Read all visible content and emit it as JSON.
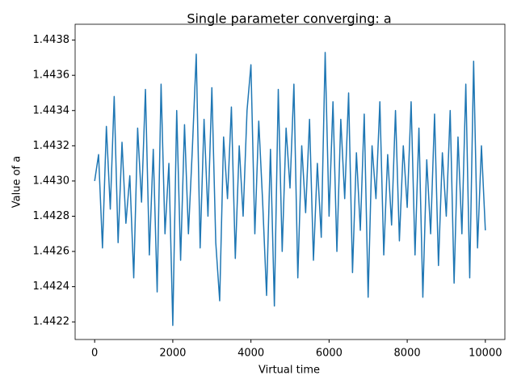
{
  "chart_data": {
    "type": "line",
    "title": "Single parameter converging: a",
    "xlabel": "Virtual time",
    "ylabel": "Value of a",
    "x": [
      0,
      100,
      200,
      300,
      400,
      500,
      600,
      700,
      800,
      900,
      1000,
      1100,
      1200,
      1300,
      1400,
      1500,
      1600,
      1700,
      1800,
      1900,
      2000,
      2100,
      2200,
      2300,
      2400,
      2500,
      2600,
      2700,
      2800,
      2900,
      3000,
      3100,
      3200,
      3300,
      3400,
      3500,
      3600,
      3700,
      3800,
      3900,
      4000,
      4100,
      4200,
      4300,
      4400,
      4500,
      4600,
      4700,
      4800,
      4900,
      5000,
      5100,
      5200,
      5300,
      5400,
      5500,
      5600,
      5700,
      5800,
      5900,
      6000,
      6100,
      6200,
      6300,
      6400,
      6500,
      6600,
      6700,
      6800,
      6900,
      7000,
      7100,
      7200,
      7300,
      7400,
      7500,
      7600,
      7700,
      7800,
      7900,
      8000,
      8100,
      8200,
      8300,
      8400,
      8500,
      8600,
      8700,
      8800,
      8900,
      9000,
      9100,
      9200,
      9300,
      9400,
      9500,
      9600,
      9700,
      9800,
      9900,
      10000
    ],
    "series": [
      {
        "color": "#1f77b4",
        "values": [
          1.443,
          1.44315,
          1.44262,
          1.44331,
          1.44284,
          1.44348,
          1.44265,
          1.44322,
          1.44276,
          1.44303,
          1.44245,
          1.4433,
          1.44288,
          1.44352,
          1.44258,
          1.44318,
          1.44237,
          1.44355,
          1.4427,
          1.4431,
          1.44218,
          1.4434,
          1.44255,
          1.44332,
          1.4427,
          1.44318,
          1.44372,
          1.44262,
          1.44335,
          1.4428,
          1.44353,
          1.44265,
          1.44232,
          1.44325,
          1.4429,
          1.44342,
          1.44256,
          1.4432,
          1.4428,
          1.4434,
          1.44366,
          1.4427,
          1.44334,
          1.44288,
          1.44235,
          1.44318,
          1.44229,
          1.44352,
          1.4426,
          1.4433,
          1.44296,
          1.44355,
          1.44245,
          1.4432,
          1.44282,
          1.44335,
          1.44255,
          1.4431,
          1.44268,
          1.44373,
          1.4428,
          1.44345,
          1.4426,
          1.44335,
          1.4429,
          1.4435,
          1.44248,
          1.44316,
          1.44272,
          1.44338,
          1.44234,
          1.4432,
          1.4429,
          1.44345,
          1.44258,
          1.44315,
          1.44275,
          1.4434,
          1.44266,
          1.4432,
          1.44285,
          1.44345,
          1.44258,
          1.4433,
          1.44234,
          1.44312,
          1.4427,
          1.44338,
          1.44252,
          1.44316,
          1.4428,
          1.4434,
          1.44242,
          1.44325,
          1.4427,
          1.44355,
          1.44245,
          1.44368,
          1.44262,
          1.4432,
          1.44272
        ]
      }
    ],
    "xlim": [
      -500,
      10500
    ],
    "xticks": [
      0,
      2000,
      4000,
      6000,
      8000,
      10000
    ],
    "ylim": [
      1.4421,
      1.44389
    ],
    "yticks": [
      1.4422,
      1.4424,
      1.4426,
      1.4428,
      {
        "value": 1.443,
        "label": "1.4430"
      },
      1.4432,
      1.4434,
      1.4436,
      1.4438
    ]
  }
}
